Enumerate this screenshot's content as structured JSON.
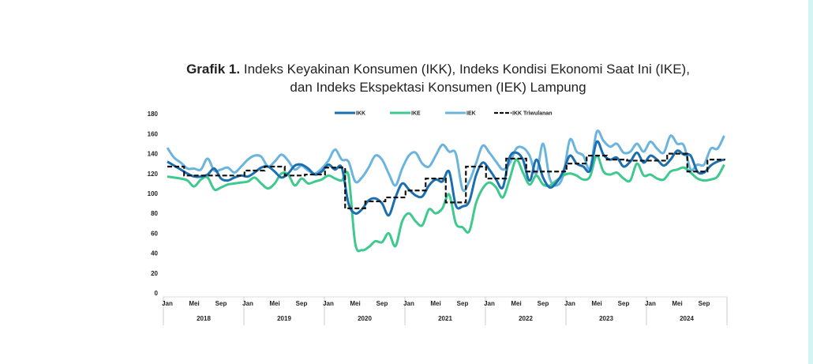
{
  "title": {
    "bold": "Grafik 1.",
    "line1": "Indeks Keyakinan Konsumen (IKK), Indeks Kondisi Ekonomi Saat Ini (IKE),",
    "line2": "dan Indeks Ekspektasi Konsumen (IEK) Lampung"
  },
  "chart_data": {
    "type": "line",
    "title": "Grafik 1. Indeks Keyakinan Konsumen (IKK), Indeks Kondisi Ekonomi Saat Ini (IKE), dan Indeks Ekspektasi Konsumen (IEK) Lampung",
    "xlabel": "",
    "ylabel": "",
    "ylim": [
      0,
      180
    ],
    "yticks": [
      "0",
      "20",
      "40",
      "60",
      "80",
      "100",
      "120",
      "140",
      "160",
      "180"
    ],
    "month_ticks": [
      "Jan",
      "Mei",
      "Sep"
    ],
    "years": [
      "2018",
      "2019",
      "2020",
      "2021",
      "2022",
      "2023",
      "2024"
    ],
    "legend_placement": "top",
    "grid": false,
    "series": [
      {
        "name": "IKK",
        "color": "#1b6fb0",
        "dashed": false,
        "values": [
          132,
          128,
          124,
          120,
          117,
          117,
          119,
          125,
          115,
          113,
          116,
          118,
          117,
          121,
          126,
          127,
          122,
          116,
          120,
          128,
          129,
          125,
          119,
          122,
          129,
          124,
          126,
          90,
          80,
          84,
          93,
          95,
          90,
          78,
          96,
          110,
          104,
          98,
          97,
          108,
          114,
          112,
          122,
          88,
          87,
          92,
          118,
          131,
          124,
          114,
          106,
          136,
          141,
          134,
          113,
          134,
          116,
          106,
          111,
          122,
          138,
          130,
          127,
          123,
          152,
          139,
          134,
          136,
          127,
          132,
          141,
          131,
          138,
          134,
          128,
          134,
          143,
          139,
          138,
          122,
          121,
          128,
          132,
          134
        ]
      },
      {
        "name": "IKE",
        "color": "#3ec98e",
        "dashed": false,
        "values": [
          117,
          116,
          115,
          113,
          107,
          114,
          116,
          104,
          106,
          109,
          110,
          111,
          112,
          116,
          110,
          105,
          110,
          120,
          119,
          108,
          115,
          110,
          112,
          114,
          118,
          115,
          113,
          118,
          50,
          43,
          46,
          52,
          51,
          60,
          47,
          72,
          80,
          72,
          68,
          84,
          80,
          85,
          99,
          70,
          66,
          62,
          90,
          105,
          111,
          106,
          96,
          114,
          134,
          121,
          109,
          118,
          109,
          108,
          113,
          118,
          120,
          118,
          114,
          117,
          138,
          122,
          119,
          121,
          115,
          113,
          130,
          118,
          119,
          115,
          114,
          122,
          124,
          126,
          121,
          115,
          113,
          114,
          117,
          129
        ]
      },
      {
        "name": "IEK",
        "color": "#6ab4dd",
        "dashed": false,
        "values": [
          146,
          136,
          131,
          125,
          125,
          124,
          135,
          123,
          124,
          126,
          121,
          127,
          134,
          138,
          137,
          127,
          132,
          139,
          133,
          124,
          128,
          123,
          120,
          125,
          133,
          144,
          134,
          132,
          112,
          116,
          126,
          138,
          134,
          120,
          108,
          125,
          138,
          141,
          130,
          127,
          138,
          149,
          142,
          140,
          104,
          112,
          130,
          148,
          141,
          132,
          124,
          130,
          145,
          146,
          138,
          120,
          150,
          115,
          108,
          118,
          154,
          142,
          138,
          125,
          162,
          153,
          147,
          150,
          141,
          142,
          150,
          142,
          152,
          145,
          141,
          158,
          150,
          148,
          124,
          129,
          129,
          145,
          145,
          158
        ]
      },
      {
        "name": "IKK Triwulanan",
        "color": "#111111",
        "dashed": true,
        "quarterly": [
          127,
          118,
          118,
          118,
          123,
          127,
          118,
          119,
          126,
          85,
          92,
          96,
          103,
          115,
          91,
          127,
          115,
          135,
          122,
          122,
          130,
          138,
          134,
          133,
          133,
          140,
          122,
          134
        ]
      }
    ]
  }
}
